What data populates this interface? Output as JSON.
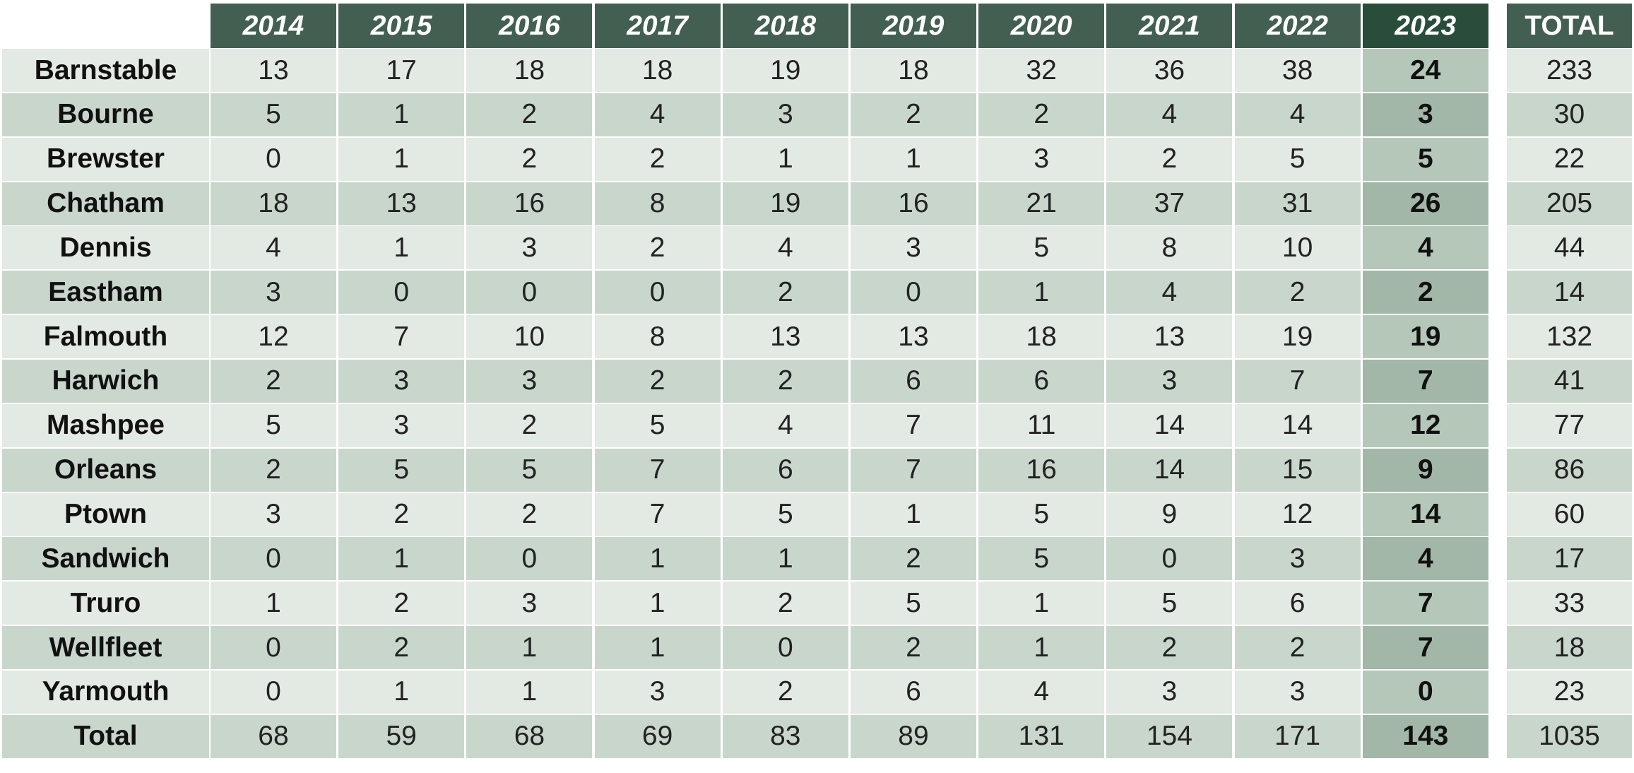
{
  "chart_data": {
    "type": "table",
    "columns": [
      "2014",
      "2015",
      "2016",
      "2017",
      "2018",
      "2019",
      "2020",
      "2021",
      "2022",
      "2023"
    ],
    "total_label": "TOTAL",
    "highlight_column": "2023",
    "rows": [
      {
        "label": "Barnstable",
        "values": [
          13,
          17,
          18,
          18,
          19,
          18,
          32,
          36,
          38,
          24
        ],
        "total": 233
      },
      {
        "label": "Bourne",
        "values": [
          5,
          1,
          2,
          4,
          3,
          2,
          2,
          4,
          4,
          3
        ],
        "total": 30
      },
      {
        "label": "Brewster",
        "values": [
          0,
          1,
          2,
          2,
          1,
          1,
          3,
          2,
          5,
          5
        ],
        "total": 22
      },
      {
        "label": "Chatham",
        "values": [
          18,
          13,
          16,
          8,
          19,
          16,
          21,
          37,
          31,
          26
        ],
        "total": 205
      },
      {
        "label": "Dennis",
        "values": [
          4,
          1,
          3,
          2,
          4,
          3,
          5,
          8,
          10,
          4
        ],
        "total": 44
      },
      {
        "label": "Eastham",
        "values": [
          3,
          0,
          0,
          0,
          2,
          0,
          1,
          4,
          2,
          2
        ],
        "total": 14
      },
      {
        "label": "Falmouth",
        "values": [
          12,
          7,
          10,
          8,
          13,
          13,
          18,
          13,
          19,
          19
        ],
        "total": 132
      },
      {
        "label": "Harwich",
        "values": [
          2,
          3,
          3,
          2,
          2,
          6,
          6,
          3,
          7,
          7
        ],
        "total": 41
      },
      {
        "label": "Mashpee",
        "values": [
          5,
          3,
          2,
          5,
          4,
          7,
          11,
          14,
          14,
          12
        ],
        "total": 77
      },
      {
        "label": "Orleans",
        "values": [
          2,
          5,
          5,
          7,
          6,
          7,
          16,
          14,
          15,
          9
        ],
        "total": 86
      },
      {
        "label": "Ptown",
        "values": [
          3,
          2,
          2,
          7,
          5,
          1,
          5,
          9,
          12,
          14
        ],
        "total": 60
      },
      {
        "label": "Sandwich",
        "values": [
          0,
          1,
          0,
          1,
          1,
          2,
          5,
          0,
          3,
          4
        ],
        "total": 17
      },
      {
        "label": "Truro",
        "values": [
          1,
          2,
          3,
          1,
          2,
          5,
          1,
          5,
          6,
          7
        ],
        "total": 33
      },
      {
        "label": "Wellfleet",
        "values": [
          0,
          2,
          1,
          1,
          0,
          2,
          1,
          2,
          2,
          7
        ],
        "total": 18
      },
      {
        "label": "Yarmouth",
        "values": [
          0,
          1,
          1,
          3,
          2,
          6,
          4,
          3,
          3,
          0
        ],
        "total": 23
      },
      {
        "label": "Total",
        "values": [
          68,
          59,
          68,
          69,
          83,
          89,
          131,
          154,
          171,
          143
        ],
        "total": 1035
      }
    ]
  },
  "colors": {
    "header": "#435f51",
    "header_current": "#2a4d3b",
    "row_light": "#e3e9e3",
    "row_dark": "#c9d6cc",
    "current_light": "#b5c7b9",
    "current_dark": "#a2b7a7"
  }
}
